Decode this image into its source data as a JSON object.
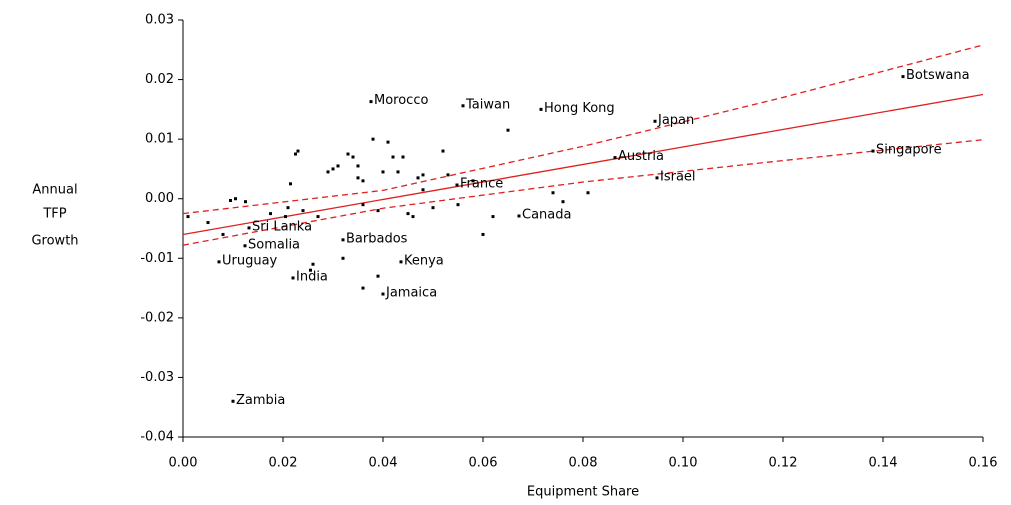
{
  "chart_data": {
    "type": "scatter",
    "x_label": "Equipment Share",
    "y_label": [
      "Annual",
      "TFP",
      "Growth"
    ],
    "xlim": [
      0,
      0.16
    ],
    "ylim": [
      -0.04,
      0.03
    ],
    "xticks": [
      {
        "value": 0,
        "label": "0.00"
      },
      0.02,
      0.04,
      0.06,
      0.08,
      {
        "value": 0.1,
        "label": "0.10"
      },
      0.12,
      0.14,
      0.16
    ],
    "yticks": [
      0.03,
      0.02,
      0.01,
      {
        "value": 0,
        "label": "0.00"
      },
      -0.01,
      -0.02,
      -0.03,
      -0.04
    ],
    "series": [
      {
        "color": "#000000",
        "x": [
          0.144,
          0.0376,
          0.056,
          0.0716,
          0.0944,
          0.0864,
          0.0948,
          0.138,
          0.0548,
          0.0672,
          0.0132,
          0.0124,
          0.032,
          0.0072,
          0.022,
          0.0436,
          0.04,
          0.01,
          0.0105,
          0.0095,
          0.0125,
          0.0175,
          0.0205,
          0.021,
          0.0215,
          0.0225,
          0.023,
          0.024,
          0.026,
          0.0255,
          0.027,
          0.029,
          0.03,
          0.031,
          0.032,
          0.033,
          0.034,
          0.035,
          0.035,
          0.036,
          0.036,
          0.038,
          0.039,
          0.04,
          0.041,
          0.042,
          0.043,
          0.044,
          0.045,
          0.046,
          0.047,
          0.048,
          0.048,
          0.05,
          0.052,
          0.053,
          0.055,
          0.058,
          0.06,
          0.062,
          0.065,
          0.074,
          0.076,
          0.081,
          0.036,
          0.039,
          0.001,
          0.005,
          0.008
        ],
        "y": [
          0.0205,
          0.0163,
          0.0156,
          0.015,
          0.013,
          0.0069,
          0.0035,
          0.008,
          0.0023,
          -0.0029,
          -0.0049,
          -0.0079,
          -0.0069,
          -0.0106,
          -0.0133,
          -0.0106,
          -0.016,
          -0.034,
          0.0,
          -0.0003,
          -0.0005,
          -0.0025,
          -0.003,
          -0.0015,
          0.0025,
          0.0075,
          0.008,
          -0.002,
          -0.011,
          -0.012,
          -0.003,
          0.0045,
          0.005,
          0.0055,
          -0.01,
          0.0075,
          0.007,
          0.0035,
          0.0055,
          0.003,
          -0.001,
          0.01,
          -0.002,
          0.0045,
          0.0095,
          0.007,
          0.0045,
          0.007,
          -0.0025,
          -0.003,
          0.0035,
          0.004,
          0.0015,
          -0.0015,
          0.008,
          0.004,
          -0.001,
          0.003,
          -0.006,
          -0.003,
          0.0115,
          0.001,
          -0.0005,
          0.001,
          -0.015,
          -0.013,
          -0.003,
          -0.004,
          -0.006
        ],
        "labels": [
          "Botswana",
          "Morocco",
          "Taiwan",
          "Hong Kong",
          "Japan",
          "Austria",
          "Israel",
          "Singapore",
          "France",
          "Canada",
          "Sri Lanka",
          "Somalia",
          "Barbados",
          "Uruguay",
          "India",
          "Kenya",
          "Jamaica",
          "Zambia",
          null,
          null,
          null,
          null,
          null,
          null,
          null,
          null,
          null,
          null,
          null,
          null,
          null,
          null,
          null,
          null,
          null,
          null,
          null,
          null,
          null,
          null,
          null,
          null,
          null,
          null,
          null,
          null,
          null,
          null,
          null,
          null,
          null,
          null,
          null,
          null,
          null,
          null,
          null,
          null,
          null,
          null,
          null,
          null,
          null,
          null,
          null,
          null,
          null,
          null,
          null,
          null,
          null
        ]
      }
    ],
    "lines": [
      {
        "style": "solid",
        "color": "#e02020",
        "x": [
          0,
          0.16
        ],
        "y": [
          -0.006,
          0.0175
        ]
      },
      {
        "style": "dashed",
        "color": "#e02020",
        "x": [
          0,
          0.04,
          0.08,
          0.12,
          0.16
        ],
        "y": [
          -0.0025,
          0.0014,
          0.0088,
          0.017,
          0.0258
        ]
      },
      {
        "style": "dashed",
        "color": "#e02020",
        "x": [
          0,
          0.04,
          0.08,
          0.12,
          0.16
        ],
        "y": [
          -0.0078,
          -0.0016,
          0.0028,
          0.0064,
          0.0099
        ]
      }
    ]
  }
}
